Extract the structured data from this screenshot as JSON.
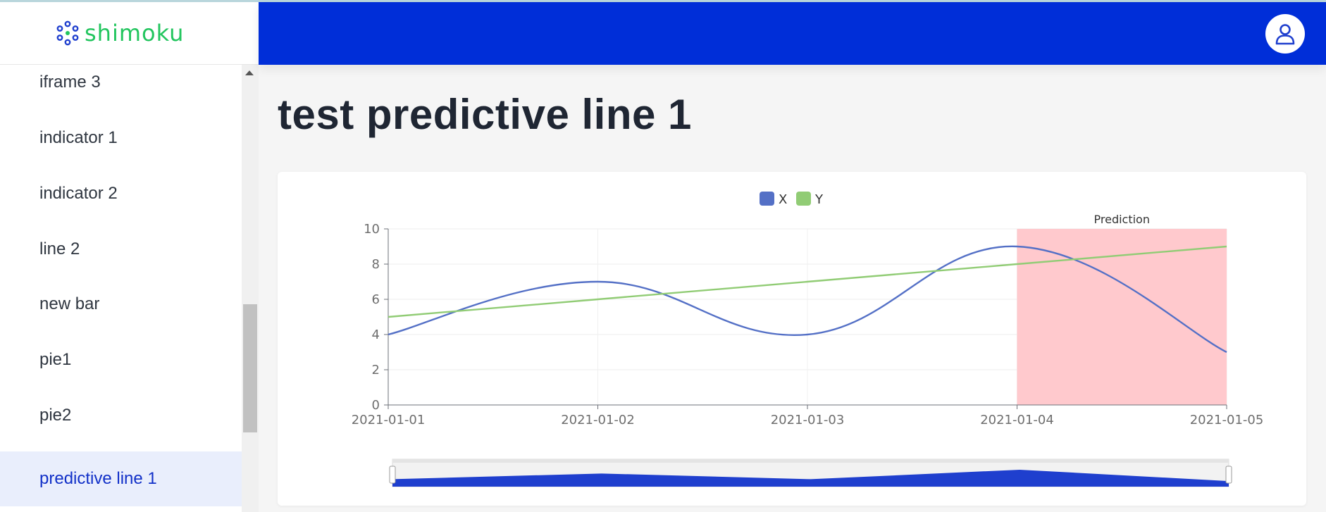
{
  "brand": {
    "name": "shimoku",
    "logo_icon": "shimoku-logo-icon",
    "color": "#22c55e"
  },
  "header": {
    "color": "#002ed8",
    "user_icon": "user-icon"
  },
  "sidebar": {
    "items": [
      {
        "label": "iframe 3"
      },
      {
        "label": "indicator 1"
      },
      {
        "label": "indicator 2"
      },
      {
        "label": "line 2"
      },
      {
        "label": "new bar"
      },
      {
        "label": "pie1"
      },
      {
        "label": "pie2"
      },
      {
        "label": "predictive line 1",
        "active": true
      }
    ]
  },
  "page": {
    "title": "test predictive line 1"
  },
  "chart_data": {
    "type": "line",
    "x": [
      "2021-01-01",
      "2021-01-02",
      "2021-01-03",
      "2021-01-04",
      "2021-01-05"
    ],
    "series": [
      {
        "name": "X",
        "values": [
          4,
          7,
          4,
          9,
          3
        ],
        "smooth": true,
        "color": "#5470c6"
      },
      {
        "name": "Y",
        "values": [
          5,
          6,
          7,
          8,
          9
        ],
        "smooth": false,
        "color": "#91cc75"
      }
    ],
    "ylim": [
      0,
      10
    ],
    "yticks": [
      0,
      2,
      4,
      6,
      8,
      10
    ],
    "legend": "top-center",
    "grid": true,
    "mark_area": {
      "label": "Prediction",
      "from": "2021-01-04",
      "to": "2021-01-05",
      "color": "#ffc9cd"
    },
    "data_zoom": {
      "range": [
        0,
        100
      ],
      "fill_color": "#1f3fce"
    }
  }
}
